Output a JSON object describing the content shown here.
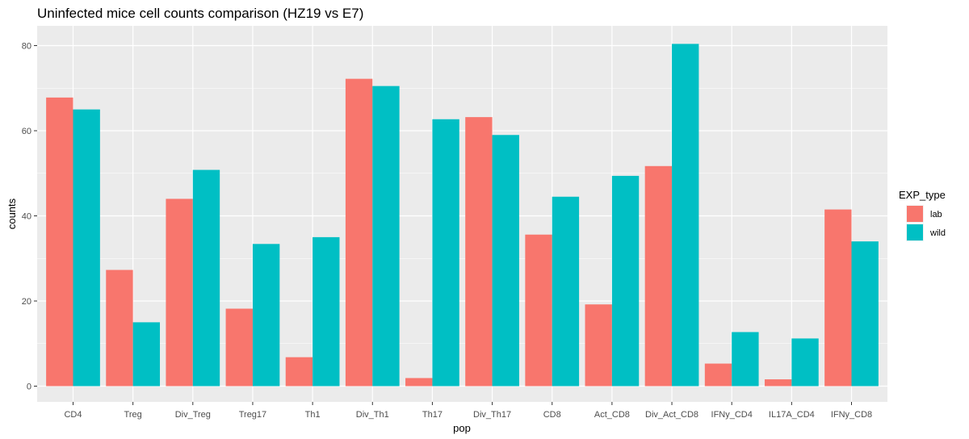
{
  "chart_data": {
    "type": "bar",
    "title": "Uninfected mice cell counts comparison (HZ19 vs E7)",
    "xlabel": "pop",
    "ylabel": "counts",
    "ylim": [
      0,
      85
    ],
    "yticks": [
      0,
      20,
      40,
      60,
      80
    ],
    "grid": true,
    "legend_title": "EXP_type",
    "legend_position": "right",
    "categories": [
      "CD4",
      "Treg",
      "Div_Treg",
      "Treg17",
      "Th1",
      "Div_Th1",
      "Th17",
      "Div_Th17",
      "CD8",
      "Act_CD8",
      "Div_Act_CD8",
      "IFNy_CD4",
      "IL17A_CD4",
      "IFNy_CD8"
    ],
    "series": [
      {
        "name": "lab",
        "color": "#F8766D",
        "values": [
          67.8,
          27.3,
          44.0,
          18.2,
          6.8,
          72.2,
          1.9,
          63.2,
          35.6,
          19.2,
          51.7,
          5.3,
          1.6,
          41.5
        ]
      },
      {
        "name": "wild",
        "color": "#00BFC4",
        "values": [
          65.0,
          15.0,
          50.8,
          33.4,
          35.0,
          70.5,
          62.7,
          59.0,
          44.5,
          49.4,
          80.4,
          12.7,
          11.2,
          34.0
        ]
      }
    ]
  }
}
